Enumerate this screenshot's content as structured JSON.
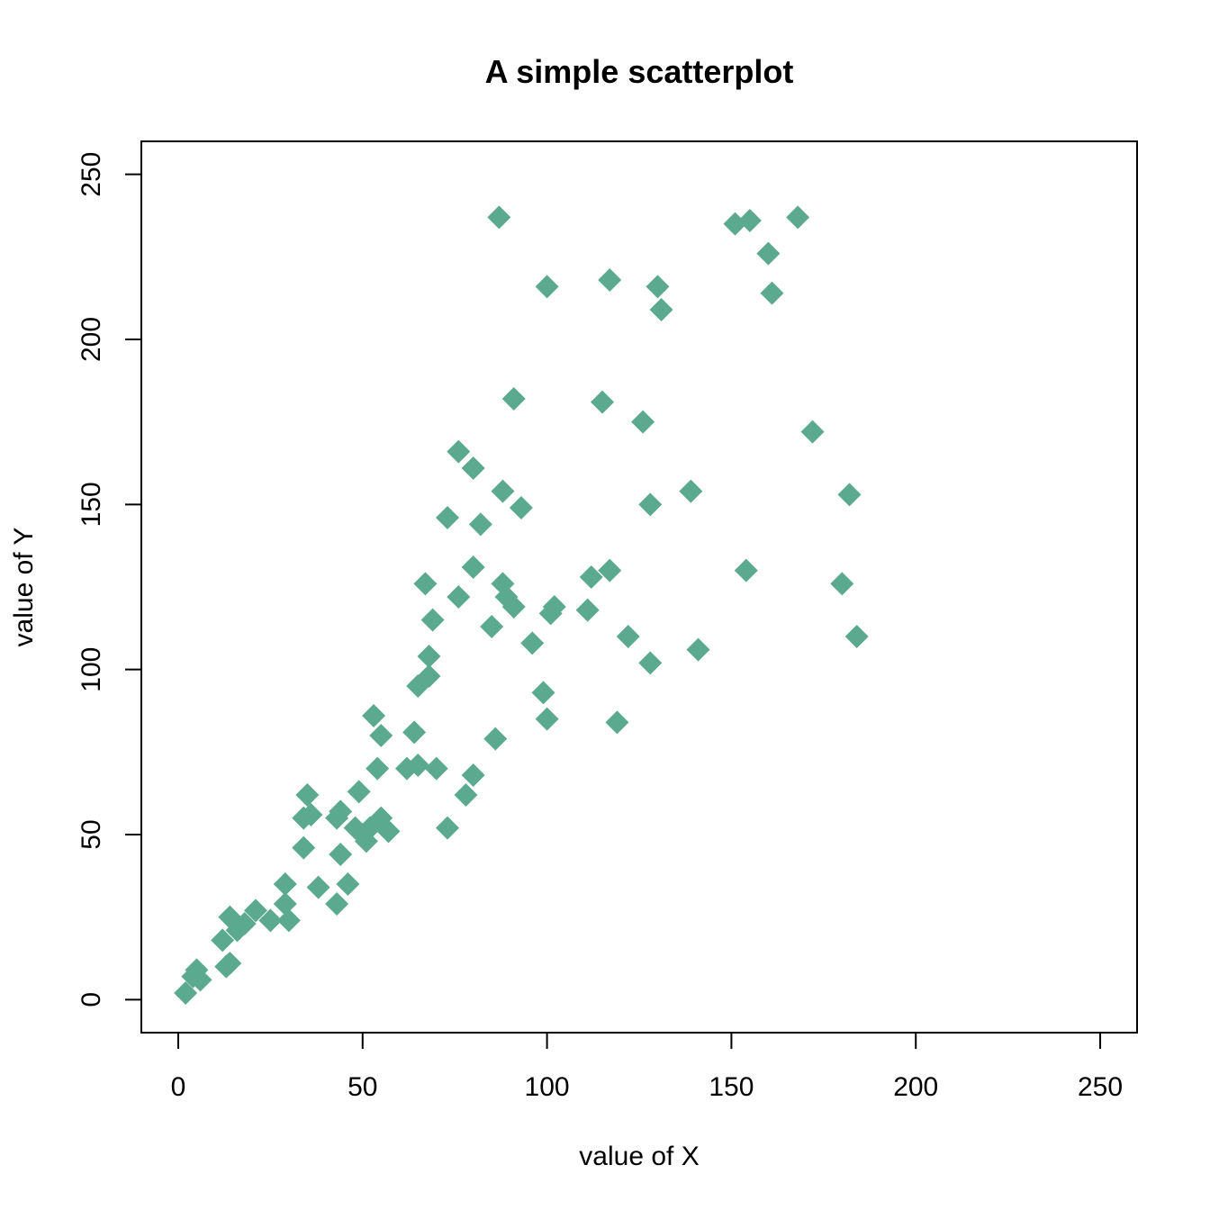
{
  "chart_data": {
    "type": "scatter",
    "title": "A simple scatterplot",
    "xlabel": "value of X",
    "ylabel": "value of Y",
    "xlim": [
      -10,
      260
    ],
    "ylim": [
      -10,
      260
    ],
    "x_ticks": [
      0,
      50,
      100,
      150,
      200,
      250
    ],
    "y_ticks": [
      0,
      50,
      100,
      150,
      200,
      250
    ],
    "marker": "diamond",
    "marker_color": "#5BAA8F",
    "grid": false,
    "legend": "none",
    "points": [
      {
        "x": 2,
        "y": 2
      },
      {
        "x": 4,
        "y": 7
      },
      {
        "x": 5,
        "y": 9
      },
      {
        "x": 6,
        "y": 6
      },
      {
        "x": 12,
        "y": 18
      },
      {
        "x": 13,
        "y": 10
      },
      {
        "x": 14,
        "y": 11
      },
      {
        "x": 14,
        "y": 25
      },
      {
        "x": 16,
        "y": 21
      },
      {
        "x": 18,
        "y": 23
      },
      {
        "x": 21,
        "y": 27
      },
      {
        "x": 25,
        "y": 24
      },
      {
        "x": 29,
        "y": 29
      },
      {
        "x": 29,
        "y": 35
      },
      {
        "x": 30,
        "y": 24
      },
      {
        "x": 34,
        "y": 46
      },
      {
        "x": 34,
        "y": 55
      },
      {
        "x": 35,
        "y": 62
      },
      {
        "x": 36,
        "y": 56
      },
      {
        "x": 38,
        "y": 34
      },
      {
        "x": 43,
        "y": 55
      },
      {
        "x": 43,
        "y": 29
      },
      {
        "x": 44,
        "y": 44
      },
      {
        "x": 44,
        "y": 57
      },
      {
        "x": 46,
        "y": 35
      },
      {
        "x": 48,
        "y": 52
      },
      {
        "x": 49,
        "y": 63
      },
      {
        "x": 50,
        "y": 50
      },
      {
        "x": 51,
        "y": 48
      },
      {
        "x": 52,
        "y": 52
      },
      {
        "x": 53,
        "y": 86
      },
      {
        "x": 54,
        "y": 70
      },
      {
        "x": 55,
        "y": 55
      },
      {
        "x": 55,
        "y": 80
      },
      {
        "x": 57,
        "y": 51
      },
      {
        "x": 62,
        "y": 70
      },
      {
        "x": 64,
        "y": 81
      },
      {
        "x": 65,
        "y": 71
      },
      {
        "x": 65,
        "y": 95
      },
      {
        "x": 67,
        "y": 126
      },
      {
        "x": 68,
        "y": 98
      },
      {
        "x": 68,
        "y": 104
      },
      {
        "x": 69,
        "y": 115
      },
      {
        "x": 70,
        "y": 70
      },
      {
        "x": 73,
        "y": 146
      },
      {
        "x": 73,
        "y": 52
      },
      {
        "x": 76,
        "y": 166
      },
      {
        "x": 76,
        "y": 122
      },
      {
        "x": 78,
        "y": 62
      },
      {
        "x": 80,
        "y": 131
      },
      {
        "x": 80,
        "y": 68
      },
      {
        "x": 80,
        "y": 161
      },
      {
        "x": 82,
        "y": 144
      },
      {
        "x": 85,
        "y": 113
      },
      {
        "x": 86,
        "y": 79
      },
      {
        "x": 87,
        "y": 237
      },
      {
        "x": 88,
        "y": 154
      },
      {
        "x": 88,
        "y": 126
      },
      {
        "x": 89,
        "y": 122
      },
      {
        "x": 91,
        "y": 119
      },
      {
        "x": 91,
        "y": 182
      },
      {
        "x": 93,
        "y": 149
      },
      {
        "x": 96,
        "y": 108
      },
      {
        "x": 99,
        "y": 93
      },
      {
        "x": 100,
        "y": 216
      },
      {
        "x": 100,
        "y": 85
      },
      {
        "x": 101,
        "y": 117
      },
      {
        "x": 102,
        "y": 119
      },
      {
        "x": 111,
        "y": 118
      },
      {
        "x": 112,
        "y": 128
      },
      {
        "x": 115,
        "y": 181
      },
      {
        "x": 117,
        "y": 130
      },
      {
        "x": 117,
        "y": 218
      },
      {
        "x": 119,
        "y": 84
      },
      {
        "x": 122,
        "y": 110
      },
      {
        "x": 126,
        "y": 175
      },
      {
        "x": 128,
        "y": 150
      },
      {
        "x": 128,
        "y": 102
      },
      {
        "x": 130,
        "y": 216
      },
      {
        "x": 131,
        "y": 209
      },
      {
        "x": 139,
        "y": 154
      },
      {
        "x": 141,
        "y": 106
      },
      {
        "x": 151,
        "y": 235
      },
      {
        "x": 154,
        "y": 130
      },
      {
        "x": 155,
        "y": 236
      },
      {
        "x": 160,
        "y": 226
      },
      {
        "x": 161,
        "y": 214
      },
      {
        "x": 168,
        "y": 237
      },
      {
        "x": 172,
        "y": 172
      },
      {
        "x": 180,
        "y": 126
      },
      {
        "x": 182,
        "y": 153
      },
      {
        "x": 184,
        "y": 110
      }
    ]
  }
}
